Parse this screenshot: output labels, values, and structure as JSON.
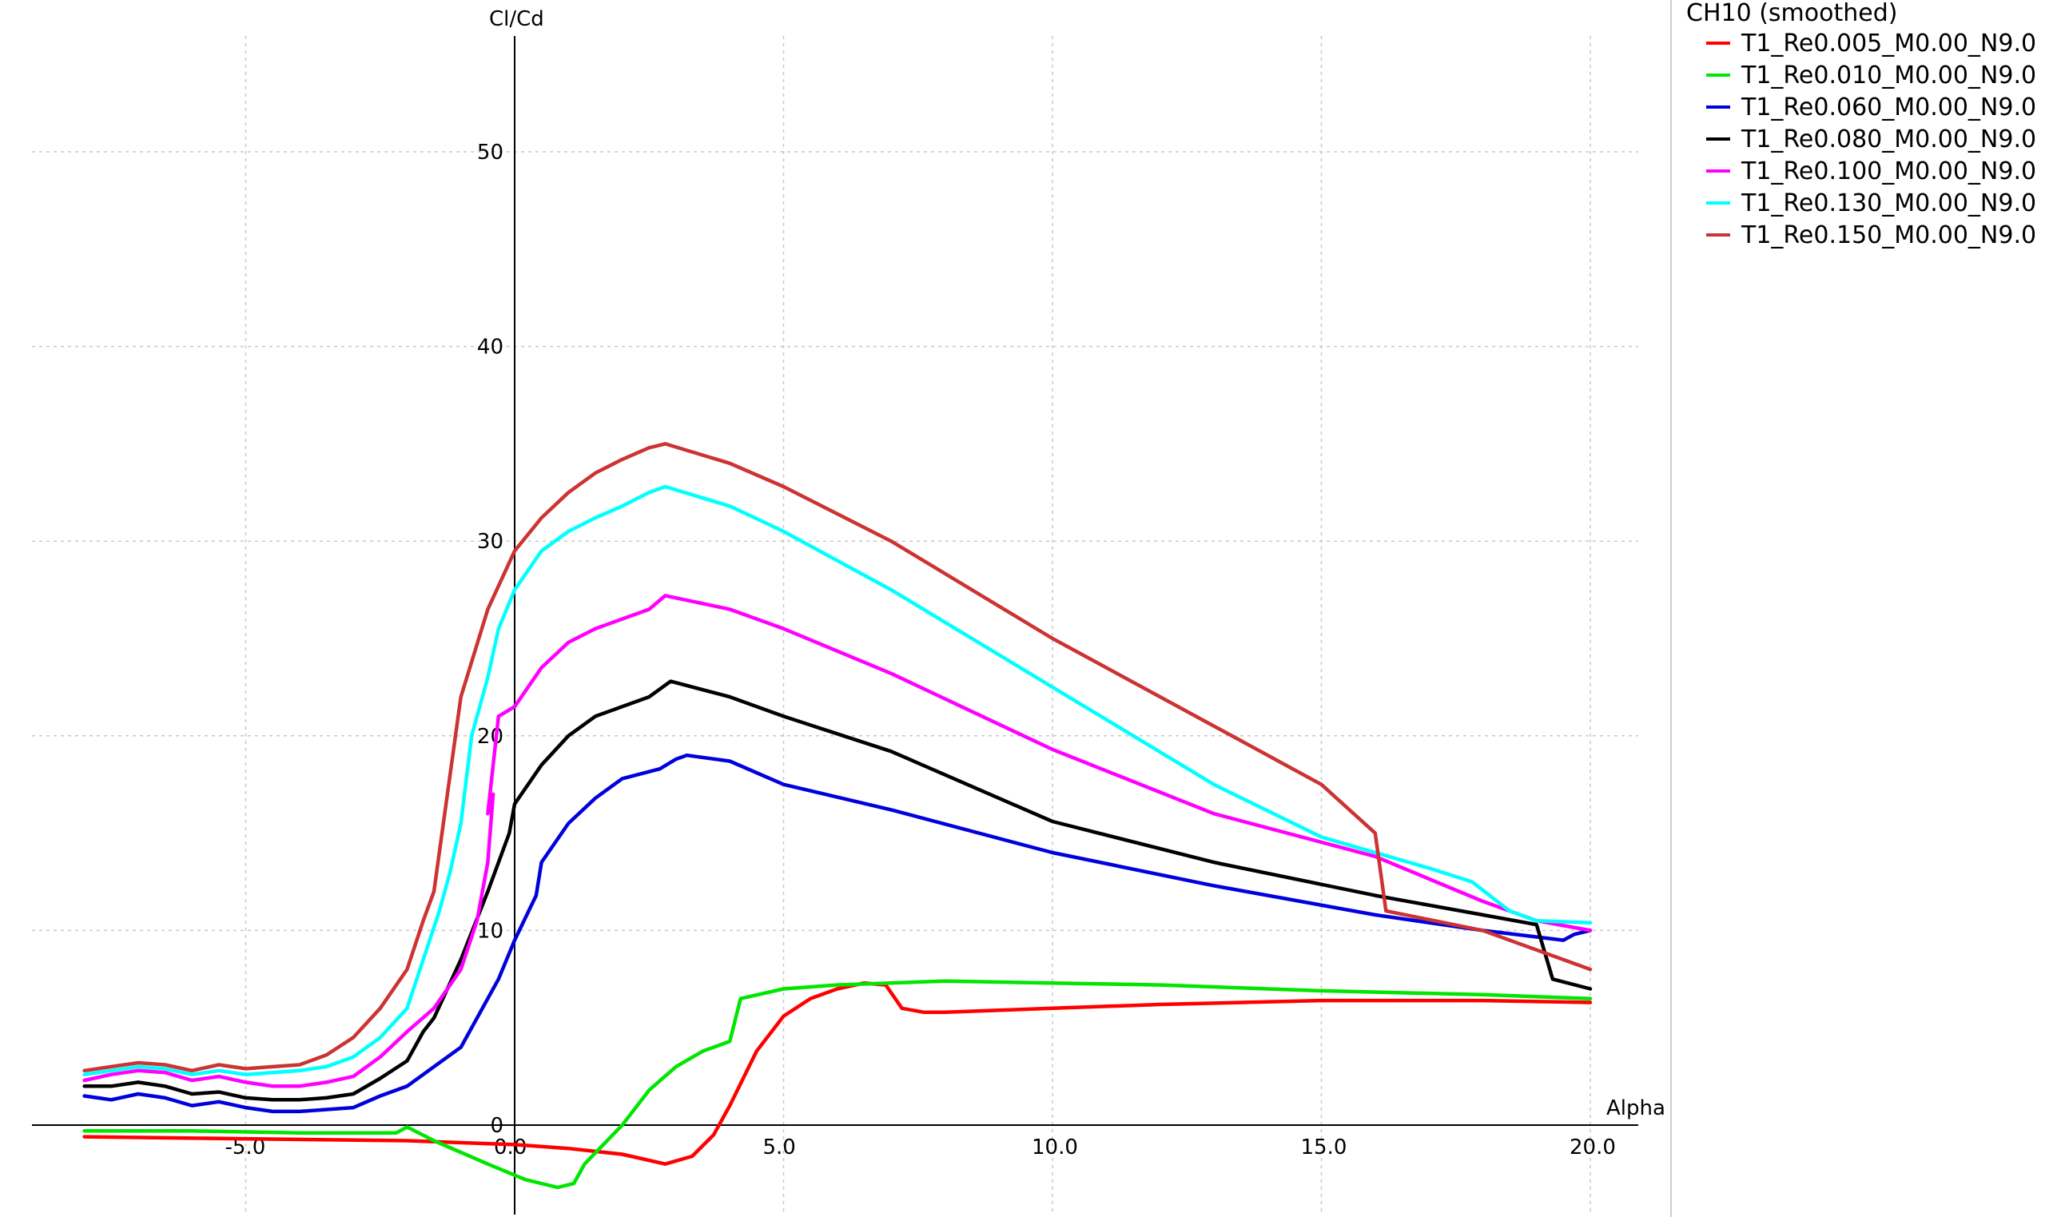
{
  "chart_data": {
    "type": "line",
    "title": "",
    "xlabel": "Alpha",
    "ylabel": "Cl/Cd",
    "xlim": [
      -8.3,
      21.2
    ],
    "ylim": [
      -4.8,
      56.0
    ],
    "x_ticks": [
      -5.0,
      0.0,
      5.0,
      10.0,
      15.0,
      20.0
    ],
    "x_tick_labels": [
      "-5.0",
      "0.0",
      "5.0",
      "10.0",
      "15.0",
      "20.0"
    ],
    "y_ticks": [
      0,
      10,
      20,
      30,
      40,
      50
    ],
    "y_tick_labels": [
      "0",
      "10",
      "20",
      "30",
      "40",
      "50"
    ],
    "grid": true,
    "legend": {
      "title": "CH10 (smoothed)",
      "placement": "right"
    },
    "series": [
      {
        "name": "T1_Re0.005_M0.00_N9.0",
        "color": "#ff0000",
        "points": [
          [
            -8,
            -0.6
          ],
          [
            -5,
            -0.7
          ],
          [
            -2,
            -0.8
          ],
          [
            0,
            -1.0
          ],
          [
            1,
            -1.2
          ],
          [
            2,
            -1.5
          ],
          [
            2.8,
            -2.0
          ],
          [
            3.3,
            -1.6
          ],
          [
            3.7,
            -0.5
          ],
          [
            4,
            1.0
          ],
          [
            4.5,
            3.8
          ],
          [
            5,
            5.6
          ],
          [
            5.5,
            6.5
          ],
          [
            6,
            7.0
          ],
          [
            6.5,
            7.3
          ],
          [
            6.9,
            7.2
          ],
          [
            7.2,
            6.0
          ],
          [
            7.6,
            5.8
          ],
          [
            8,
            5.8
          ],
          [
            10,
            6.0
          ],
          [
            12,
            6.2
          ],
          [
            15,
            6.4
          ],
          [
            18,
            6.4
          ],
          [
            20,
            6.3
          ]
        ]
      },
      {
        "name": "T1_Re0.010_M0.00_N9.0",
        "color": "#00e600",
        "points": [
          [
            -8,
            -0.3
          ],
          [
            -6,
            -0.3
          ],
          [
            -4,
            -0.4
          ],
          [
            -2.2,
            -0.4
          ],
          [
            -2,
            -0.1
          ],
          [
            -1.5,
            -0.8
          ],
          [
            -0.5,
            -2.0
          ],
          [
            0.2,
            -2.8
          ],
          [
            0.8,
            -3.2
          ],
          [
            1.1,
            -3.0
          ],
          [
            1.3,
            -2.0
          ],
          [
            2,
            0
          ],
          [
            2.5,
            1.8
          ],
          [
            3,
            3.0
          ],
          [
            3.5,
            3.8
          ],
          [
            4,
            4.3
          ],
          [
            4.2,
            6.5
          ],
          [
            5,
            7.0
          ],
          [
            6,
            7.2
          ],
          [
            8,
            7.4
          ],
          [
            10,
            7.3
          ],
          [
            12,
            7.2
          ],
          [
            15,
            6.9
          ],
          [
            18,
            6.7
          ],
          [
            20,
            6.5
          ]
        ]
      },
      {
        "name": "T1_Re0.060_M0.00_N9.0",
        "color": "#0000dd",
        "points": [
          [
            -8,
            1.5
          ],
          [
            -7.5,
            1.3
          ],
          [
            -7,
            1.6
          ],
          [
            -6.5,
            1.4
          ],
          [
            -6,
            1.0
          ],
          [
            -5.5,
            1.2
          ],
          [
            -5,
            0.9
          ],
          [
            -4.5,
            0.7
          ],
          [
            -4,
            0.7
          ],
          [
            -3.5,
            0.8
          ],
          [
            -3,
            0.9
          ],
          [
            -2.5,
            1.5
          ],
          [
            -2,
            2.0
          ],
          [
            -1.5,
            3.0
          ],
          [
            -1.0,
            4.0
          ],
          [
            -0.8,
            5.0
          ],
          [
            -0.3,
            7.5
          ],
          [
            0,
            9.5
          ],
          [
            0.4,
            11.8
          ],
          [
            0.5,
            13.5
          ],
          [
            1,
            15.5
          ],
          [
            1.5,
            16.8
          ],
          [
            2,
            17.8
          ],
          [
            2.7,
            18.3
          ],
          [
            3.0,
            18.8
          ],
          [
            3.2,
            19.0
          ],
          [
            4,
            18.7
          ],
          [
            5,
            17.5
          ],
          [
            7,
            16.2
          ],
          [
            10,
            14.0
          ],
          [
            13,
            12.3
          ],
          [
            16,
            10.8
          ],
          [
            18,
            10.0
          ],
          [
            19.5,
            9.5
          ],
          [
            19.7,
            9.8
          ],
          [
            20,
            10.0
          ]
        ]
      },
      {
        "name": "T1_Re0.080_M0.00_N9.0",
        "color": "#000000",
        "points": [
          [
            -8,
            2.0
          ],
          [
            -7.5,
            2.0
          ],
          [
            -7,
            2.2
          ],
          [
            -6.5,
            2.0
          ],
          [
            -6,
            1.6
          ],
          [
            -5.5,
            1.7
          ],
          [
            -5,
            1.4
          ],
          [
            -4.5,
            1.3
          ],
          [
            -4,
            1.3
          ],
          [
            -3.5,
            1.4
          ],
          [
            -3,
            1.6
          ],
          [
            -2.5,
            2.4
          ],
          [
            -2,
            3.3
          ],
          [
            -1.7,
            4.8
          ],
          [
            -1.5,
            5.5
          ],
          [
            -1,
            8.5
          ],
          [
            -0.5,
            12.0
          ],
          [
            -0.1,
            15.0
          ],
          [
            0,
            16.5
          ],
          [
            0.5,
            18.5
          ],
          [
            1,
            20.0
          ],
          [
            1.5,
            21.0
          ],
          [
            2,
            21.5
          ],
          [
            2.5,
            22.0
          ],
          [
            2.9,
            22.8
          ],
          [
            4,
            22.0
          ],
          [
            5,
            21.0
          ],
          [
            7,
            19.2
          ],
          [
            10,
            15.6
          ],
          [
            13,
            13.5
          ],
          [
            16,
            11.8
          ],
          [
            18,
            10.8
          ],
          [
            19.0,
            10.3
          ],
          [
            19.3,
            7.5
          ],
          [
            20,
            7.0
          ]
        ]
      },
      {
        "name": "T1_Re0.100_M0.00_N9.0",
        "color": "#ff00ff",
        "points": [
          [
            -8,
            2.3
          ],
          [
            -7.5,
            2.6
          ],
          [
            -7,
            2.8
          ],
          [
            -6.5,
            2.7
          ],
          [
            -6,
            2.3
          ],
          [
            -5.5,
            2.5
          ],
          [
            -5,
            2.2
          ],
          [
            -4.5,
            2.0
          ],
          [
            -4,
            2.0
          ],
          [
            -3.5,
            2.2
          ],
          [
            -3,
            2.5
          ],
          [
            -2.5,
            3.5
          ],
          [
            -2,
            4.8
          ],
          [
            -1.5,
            6.0
          ],
          [
            -1,
            8.0
          ],
          [
            -0.7,
            10.5
          ],
          [
            -0.5,
            13.5
          ],
          [
            -0.4,
            17.0
          ],
          [
            -0.5,
            16.0
          ],
          [
            -0.3,
            21.0
          ],
          [
            0,
            21.5
          ],
          [
            0.5,
            23.5
          ],
          [
            1,
            24.8
          ],
          [
            1.5,
            25.5
          ],
          [
            2,
            26.0
          ],
          [
            2.5,
            26.5
          ],
          [
            2.8,
            27.2
          ],
          [
            4,
            26.5
          ],
          [
            5,
            25.5
          ],
          [
            7,
            23.2
          ],
          [
            10,
            19.3
          ],
          [
            13,
            16.0
          ],
          [
            16,
            13.8
          ],
          [
            18,
            11.5
          ],
          [
            19,
            10.5
          ],
          [
            20,
            10.0
          ]
        ]
      },
      {
        "name": "T1_Re0.130_M0.00_N9.0",
        "color": "#00ffff",
        "points": [
          [
            -8,
            2.6
          ],
          [
            -7.5,
            2.8
          ],
          [
            -7,
            3.0
          ],
          [
            -6.5,
            2.9
          ],
          [
            -6,
            2.6
          ],
          [
            -5.5,
            2.8
          ],
          [
            -5,
            2.6
          ],
          [
            -4.5,
            2.7
          ],
          [
            -4,
            2.8
          ],
          [
            -3.5,
            3.0
          ],
          [
            -3,
            3.5
          ],
          [
            -2.5,
            4.5
          ],
          [
            -2,
            6.0
          ],
          [
            -1.7,
            8.5
          ],
          [
            -1.4,
            11.0
          ],
          [
            -1.2,
            13.0
          ],
          [
            -1,
            15.5
          ],
          [
            -0.8,
            20.0
          ],
          [
            -0.5,
            23.0
          ],
          [
            -0.3,
            25.5
          ],
          [
            0,
            27.5
          ],
          [
            0.5,
            29.5
          ],
          [
            1,
            30.5
          ],
          [
            1.5,
            31.2
          ],
          [
            2,
            31.8
          ],
          [
            2.5,
            32.5
          ],
          [
            2.8,
            32.8
          ],
          [
            4,
            31.8
          ],
          [
            5,
            30.5
          ],
          [
            7,
            27.5
          ],
          [
            10,
            22.5
          ],
          [
            13,
            17.5
          ],
          [
            15,
            14.8
          ],
          [
            17,
            13.2
          ],
          [
            17.8,
            12.5
          ],
          [
            18.5,
            11.0
          ],
          [
            19,
            10.5
          ],
          [
            20,
            10.4
          ]
        ]
      },
      {
        "name": "T1_Re0.150_M0.00_N9.0",
        "color": "#cc3333",
        "points": [
          [
            -8,
            2.8
          ],
          [
            -7.5,
            3.0
          ],
          [
            -7,
            3.2
          ],
          [
            -6.5,
            3.1
          ],
          [
            -6,
            2.8
          ],
          [
            -5.5,
            3.1
          ],
          [
            -5,
            2.9
          ],
          [
            -4.5,
            3.0
          ],
          [
            -4,
            3.1
          ],
          [
            -3.5,
            3.6
          ],
          [
            -3,
            4.5
          ],
          [
            -2.5,
            6.0
          ],
          [
            -2,
            8.0
          ],
          [
            -1.7,
            10.5
          ],
          [
            -1.5,
            12.0
          ],
          [
            -1.2,
            18.0
          ],
          [
            -1,
            22.0
          ],
          [
            -0.5,
            26.5
          ],
          [
            0,
            29.5
          ],
          [
            0.5,
            31.2
          ],
          [
            1,
            32.5
          ],
          [
            1.5,
            33.5
          ],
          [
            2,
            34.2
          ],
          [
            2.5,
            34.8
          ],
          [
            2.8,
            35.0
          ],
          [
            4,
            34.0
          ],
          [
            5,
            32.8
          ],
          [
            7,
            30.0
          ],
          [
            10,
            25.0
          ],
          [
            13,
            20.5
          ],
          [
            15,
            17.5
          ],
          [
            16.0,
            15.0
          ],
          [
            16.2,
            11.0
          ],
          [
            18,
            10.0
          ],
          [
            19,
            9.0
          ],
          [
            20,
            8.0
          ]
        ]
      }
    ]
  }
}
